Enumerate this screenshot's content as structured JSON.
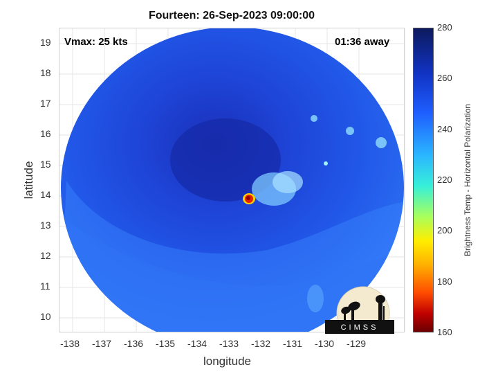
{
  "title": "Fourteen: 26-Sep-2023 09:00:00",
  "vmax_label": "Vmax: 25 kts",
  "time_label": "01:36 away",
  "xlabel": "longitude",
  "ylabel": "latitude",
  "x_ticks": [
    "-138",
    "-137",
    "-136",
    "-135",
    "-134",
    "-133",
    "-132",
    "-131",
    "-130",
    "-129"
  ],
  "y_ticks": [
    "19",
    "18",
    "17",
    "16",
    "15",
    "14",
    "13",
    "12",
    "11",
    "10"
  ],
  "colorbar": {
    "label": "Brightness Temp - Horizontal Polarization",
    "ticks": [
      "280",
      "260",
      "240",
      "220",
      "200",
      "180",
      "160"
    ]
  },
  "logo_text": "CIMSS",
  "colors": {
    "background_cold": "#1a3fd0",
    "core_warm": "#d01010"
  }
}
